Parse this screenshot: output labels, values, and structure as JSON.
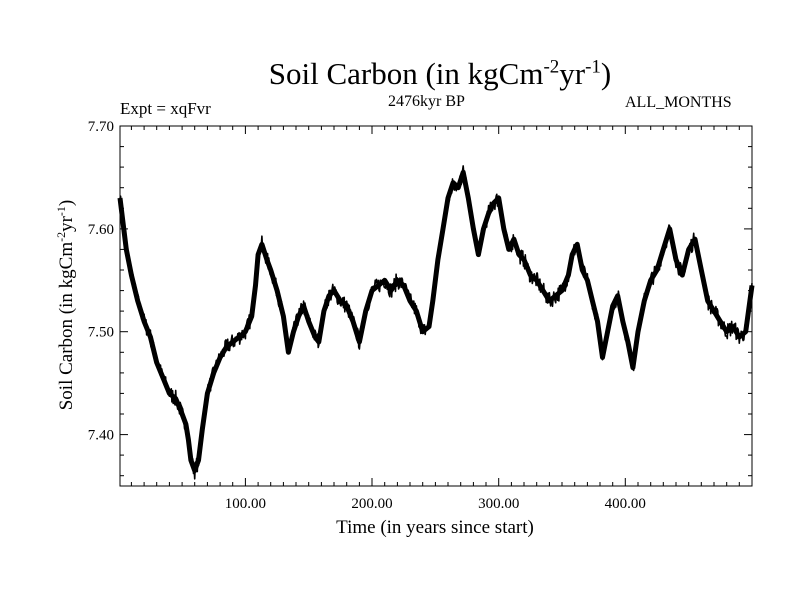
{
  "chart_data": {
    "type": "line",
    "title": "Soil Carbon (in kgCm",
    "title_sup1": "-2",
    "title_mid": "yr",
    "title_sup2": "-1",
    "title_end": ")",
    "subtitle_left": "Expt = xqFvr",
    "subtitle_center": "2476kyr BP",
    "subtitle_right": "ALL_MONTHS",
    "xlabel": "Time (in years since start)",
    "ylabel": "Soil Carbon (in kgCm",
    "ylabel_sup1": "-2",
    "ylabel_mid": "yr",
    "ylabel_sup2": "-1",
    "ylabel_end": ")",
    "xlim": [
      1,
      500
    ],
    "ylim": [
      7.35,
      7.7
    ],
    "x_ticks": [
      100,
      200,
      300,
      400
    ],
    "x_tick_labels": [
      "100.00",
      "200.00",
      "300.00",
      "400.00"
    ],
    "y_ticks": [
      7.4,
      7.5,
      7.6,
      7.7
    ],
    "y_tick_labels": [
      "7.40",
      "7.50",
      "7.60",
      "7.70"
    ],
    "grid": false,
    "series": [
      {
        "name": "Soil Carbon",
        "color": "#000000",
        "band_halfwidth": 0.008,
        "x": [
          1,
          3,
          6,
          10,
          15,
          20,
          25,
          30,
          35,
          40,
          45,
          50,
          53,
          55,
          57,
          60,
          63,
          66,
          70,
          75,
          80,
          85,
          90,
          95,
          100,
          105,
          108,
          110,
          113,
          117,
          120,
          125,
          130,
          134,
          138,
          142,
          146,
          150,
          155,
          158,
          162,
          166,
          170,
          175,
          180,
          185,
          190,
          195,
          200,
          205,
          210,
          215,
          220,
          225,
          230,
          235,
          240,
          245,
          248,
          252,
          256,
          260,
          264,
          268,
          272,
          276,
          280,
          284,
          288,
          292,
          296,
          300,
          304,
          308,
          312,
          316,
          320,
          325,
          330,
          335,
          340,
          345,
          350,
          355,
          358,
          362,
          366,
          370,
          374,
          378,
          382,
          386,
          390,
          394,
          398,
          402,
          406,
          410,
          415,
          420,
          425,
          430,
          435,
          440,
          445,
          450,
          455,
          460,
          465,
          470,
          475,
          480,
          485,
          490,
          495,
          500
        ],
        "y": [
          7.63,
          7.61,
          7.58,
          7.555,
          7.53,
          7.51,
          7.495,
          7.47,
          7.455,
          7.44,
          7.435,
          7.42,
          7.41,
          7.395,
          7.375,
          7.365,
          7.375,
          7.405,
          7.44,
          7.46,
          7.475,
          7.485,
          7.49,
          7.495,
          7.5,
          7.515,
          7.545,
          7.575,
          7.585,
          7.57,
          7.56,
          7.54,
          7.515,
          7.48,
          7.5,
          7.515,
          7.525,
          7.51,
          7.495,
          7.49,
          7.52,
          7.535,
          7.54,
          7.53,
          7.525,
          7.51,
          7.49,
          7.52,
          7.54,
          7.545,
          7.55,
          7.54,
          7.55,
          7.545,
          7.53,
          7.52,
          7.5,
          7.505,
          7.53,
          7.57,
          7.6,
          7.63,
          7.645,
          7.64,
          7.655,
          7.63,
          7.6,
          7.575,
          7.6,
          7.615,
          7.625,
          7.63,
          7.6,
          7.58,
          7.59,
          7.575,
          7.57,
          7.555,
          7.55,
          7.54,
          7.53,
          7.535,
          7.54,
          7.555,
          7.575,
          7.585,
          7.56,
          7.55,
          7.53,
          7.51,
          7.475,
          7.5,
          7.525,
          7.535,
          7.51,
          7.49,
          7.465,
          7.5,
          7.53,
          7.55,
          7.56,
          7.58,
          7.6,
          7.57,
          7.555,
          7.58,
          7.59,
          7.56,
          7.53,
          7.52,
          7.51,
          7.5,
          7.505,
          7.495,
          7.5,
          7.545
        ]
      }
    ]
  }
}
